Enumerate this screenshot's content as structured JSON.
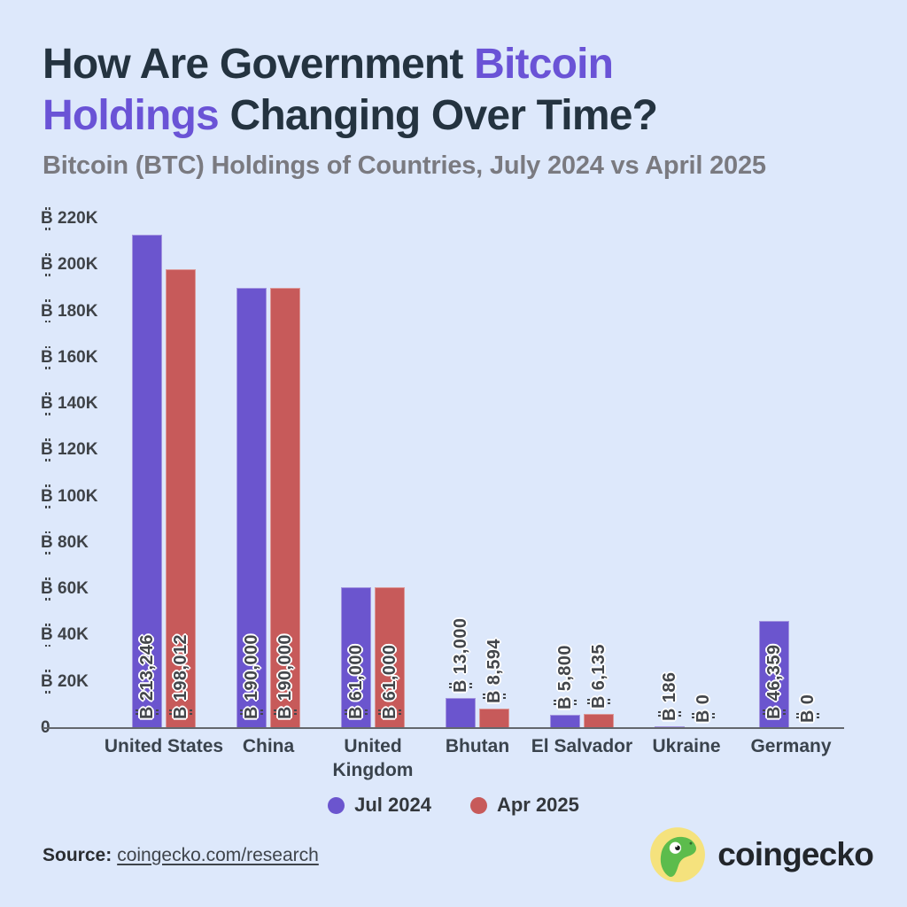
{
  "title": {
    "line1_dark": "How Are Government",
    "line1_purple": "Bitcoin",
    "line2_purple": "Holdings",
    "line2_dark": "Changing Over Time?"
  },
  "subtitle": "Bitcoin (BTC) Holdings of Countries, July 2024 vs April 2025",
  "colors": {
    "background": "#dde8fb",
    "title_dark": "#243340",
    "accent_purple": "#6a53d6",
    "bar_purple": "#6b55ce",
    "bar_red": "#c75a5a",
    "logo_yellow": "#f5e27d",
    "logo_green": "#5cbc4c"
  },
  "chart_data": {
    "type": "bar",
    "title": "How Are Government Bitcoin Holdings Changing Over Time?",
    "subtitle": "Bitcoin (BTC) Holdings of Countries, July 2024 vs April 2025",
    "currency_symbol": "₿",
    "categories": [
      "United States",
      "China",
      "United Kingdom",
      "Bhutan",
      "El Salvador",
      "Ukraine",
      "Germany"
    ],
    "series": [
      {
        "name": "Jul 2024",
        "color": "#6b55ce",
        "values": [
          213246,
          190000,
          61000,
          13000,
          5800,
          186,
          46359
        ],
        "labels": [
          "213,246",
          "190,000",
          "61,000",
          "13,000",
          "5,800",
          "186",
          "46,359"
        ]
      },
      {
        "name": "Apr 2025",
        "color": "#c75a5a",
        "values": [
          198012,
          190000,
          61000,
          8594,
          6135,
          0,
          0
        ],
        "labels": [
          "198,012",
          "190,000",
          "61,000",
          "8,594",
          "6,135",
          "0",
          "0"
        ]
      }
    ],
    "ylim": [
      0,
      220000
    ],
    "yticks": [
      {
        "value": 0,
        "label": "0",
        "prefixed": false
      },
      {
        "value": 20000,
        "label": "20K",
        "prefixed": true
      },
      {
        "value": 40000,
        "label": "40K",
        "prefixed": true
      },
      {
        "value": 60000,
        "label": "60K",
        "prefixed": true
      },
      {
        "value": 80000,
        "label": "80K",
        "prefixed": true
      },
      {
        "value": 100000,
        "label": "100K",
        "prefixed": true
      },
      {
        "value": 120000,
        "label": "120K",
        "prefixed": true
      },
      {
        "value": 140000,
        "label": "140K",
        "prefixed": true
      },
      {
        "value": 160000,
        "label": "160K",
        "prefixed": true
      },
      {
        "value": 180000,
        "label": "180K",
        "prefixed": true
      },
      {
        "value": 200000,
        "label": "200K",
        "prefixed": true
      },
      {
        "value": 220000,
        "label": "220K",
        "prefixed": true
      }
    ],
    "grid": false,
    "legend_position": "bottom"
  },
  "footer": {
    "source_label": "Source:",
    "source_link": "coingecko.com/research",
    "brand_name": "coingecko"
  }
}
